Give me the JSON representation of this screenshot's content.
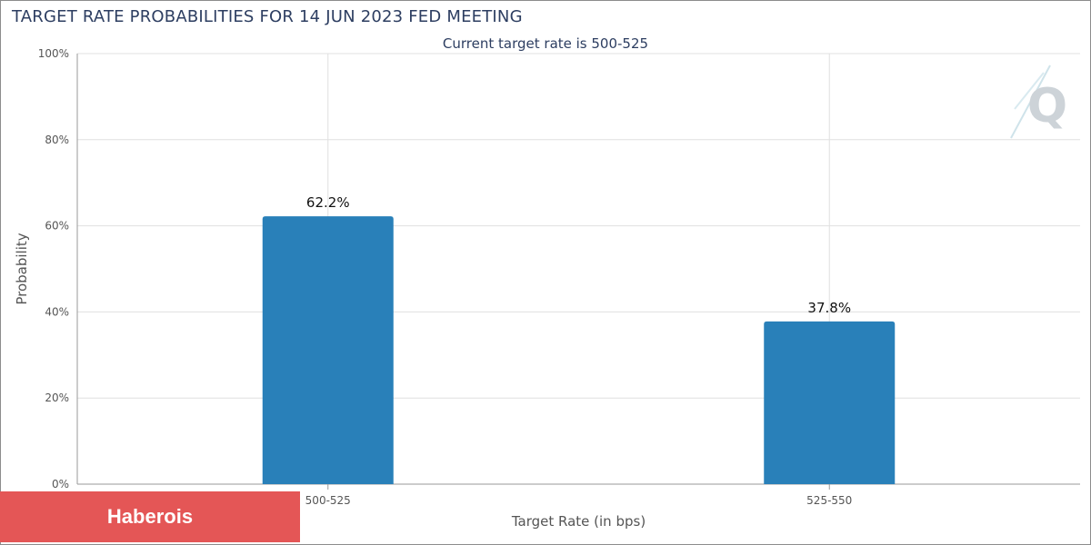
{
  "title": "TARGET RATE PROBABILITIES FOR 14 JUN 2023 FED MEETING",
  "subtitle": "Current target rate is 500-525",
  "badge_text": "Haberois",
  "logo_text": "Q",
  "colors": {
    "bar": "#2980b9",
    "title": "#2d3e61",
    "grid": "#e0e0e0",
    "axis_text": "#555555"
  },
  "chart_data": {
    "type": "bar",
    "categories": [
      "500-525",
      "525-550"
    ],
    "values": [
      62.2,
      37.8
    ],
    "data_labels": [
      "62.2%",
      "37.8%"
    ],
    "xlabel": "Target Rate (in bps)",
    "ylabel": "Probability",
    "ylim": [
      0,
      100
    ],
    "yticks": [
      0,
      20,
      40,
      60,
      80,
      100
    ],
    "ytick_labels": [
      "0%",
      "20%",
      "40%",
      "60%",
      "80%",
      "100%"
    ],
    "grid": true
  }
}
